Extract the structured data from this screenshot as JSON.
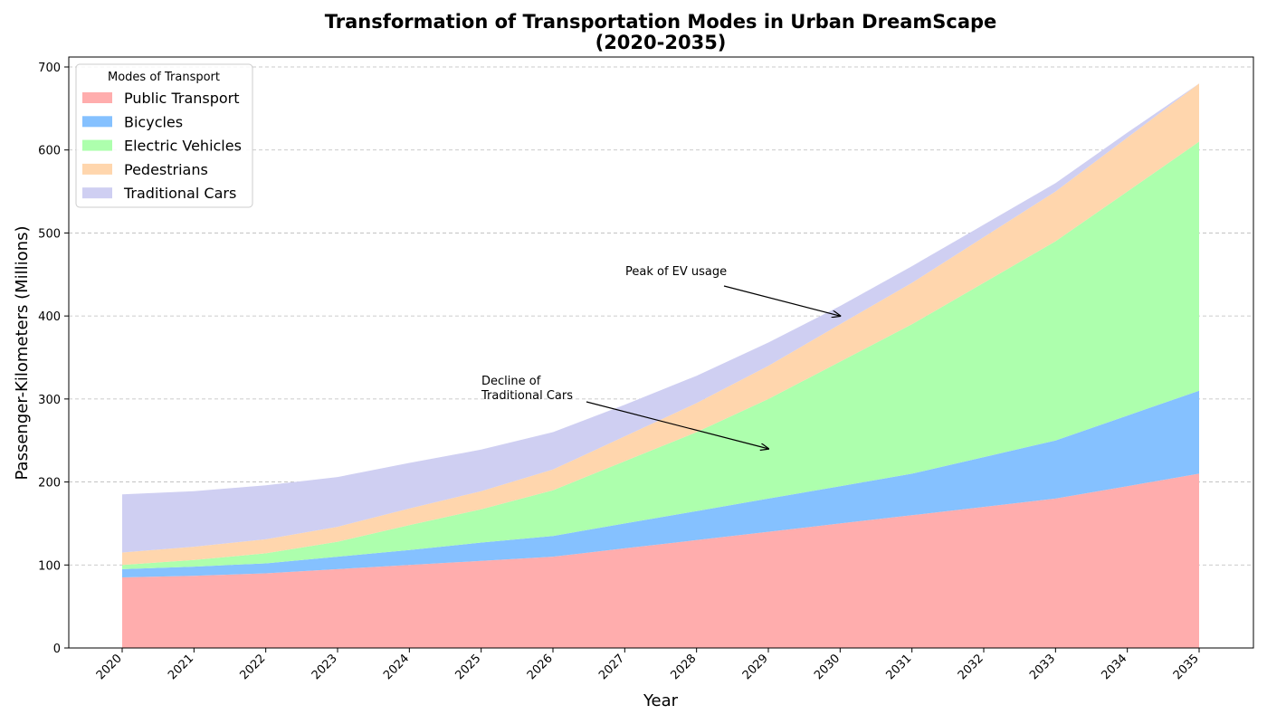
{
  "chart_data": {
    "type": "area",
    "stacked": true,
    "title": "Transformation of Transportation Modes in Urban DreamScape",
    "subtitle": "(2020-2035)",
    "xlabel": "Year",
    "ylabel": "Passenger-Kilometers (Millions)",
    "ylim": [
      0,
      712
    ],
    "yticks": [
      0,
      100,
      200,
      300,
      400,
      500,
      600,
      700
    ],
    "grid": "y-dashed",
    "legend_title": "Modes of Transport",
    "legend_position": "top-left",
    "x": [
      "2020",
      "2021",
      "2022",
      "2023",
      "2024",
      "2025",
      "2026",
      "2027",
      "2028",
      "2029",
      "2030",
      "2031",
      "2032",
      "2033",
      "2034",
      "2035"
    ],
    "series": [
      {
        "name": "Public Transport",
        "color": "#ffadad",
        "values": [
          85,
          87,
          90,
          95,
          100,
          105,
          110,
          120,
          130,
          140,
          150,
          160,
          170,
          180,
          195,
          210
        ]
      },
      {
        "name": "Bicycles",
        "color": "#85c1ff",
        "values": [
          10,
          11,
          12,
          15,
          18,
          22,
          25,
          30,
          35,
          40,
          45,
          50,
          60,
          70,
          85,
          100
        ]
      },
      {
        "name": "Electric Vehicles",
        "color": "#adffad",
        "values": [
          5,
          8,
          12,
          18,
          30,
          40,
          55,
          75,
          95,
          120,
          150,
          180,
          210,
          240,
          270,
          300
        ]
      },
      {
        "name": "Pedestrians",
        "color": "#ffd6ad",
        "values": [
          15,
          16,
          17,
          18,
          20,
          22,
          25,
          30,
          35,
          40,
          45,
          50,
          55,
          60,
          65,
          70
        ]
      },
      {
        "name": "Traditional Cars",
        "color": "#cfcff2",
        "values": [
          70,
          67,
          65,
          60,
          55,
          50,
          45,
          38,
          33,
          28,
          22,
          20,
          15,
          10,
          6,
          0
        ]
      }
    ],
    "annotations": [
      {
        "lines": [
          "Peak of EV usage"
        ],
        "x": "2030",
        "y": 400
      },
      {
        "lines": [
          "Decline of",
          "Traditional Cars"
        ],
        "x": "2029",
        "y": 240
      }
    ]
  }
}
